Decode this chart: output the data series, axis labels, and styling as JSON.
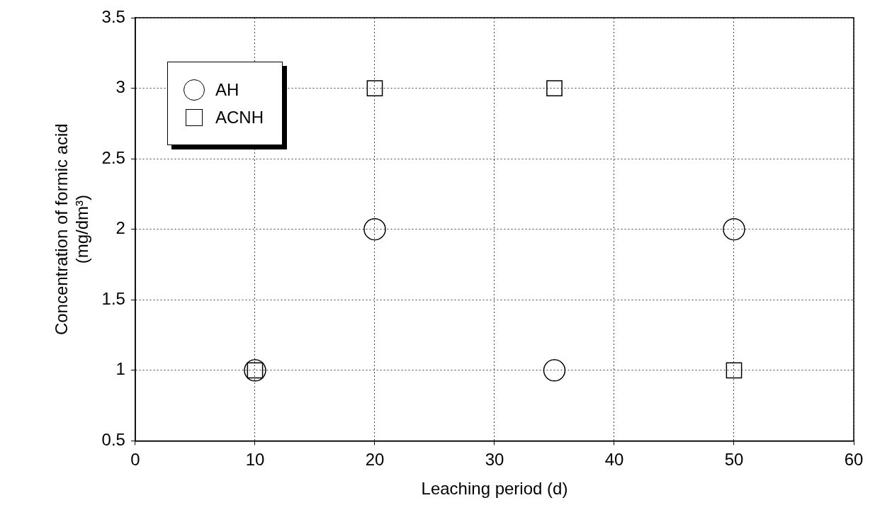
{
  "chart_data": {
    "type": "scatter",
    "xlabel": "Leaching period (d)",
    "ylabel": "Concentration of formic acid (mg/dm³)",
    "x": [
      10,
      20,
      35,
      50
    ],
    "series": [
      {
        "name": "AH",
        "color": "#000000",
        "marker": "circle",
        "values": [
          1,
          2,
          1,
          2
        ]
      },
      {
        "name": "ACNH",
        "color": "#000000",
        "marker": "square",
        "values": [
          1,
          3,
          3,
          1
        ]
      }
    ],
    "xlim": [
      0,
      60
    ],
    "xticks": [
      0,
      10,
      20,
      30,
      40,
      50,
      60
    ],
    "ylim": [
      0.5,
      3.5
    ],
    "yticks": [
      0.5,
      1,
      1.5,
      2,
      2.5,
      3,
      3.5
    ],
    "grid": true,
    "legend": "top left"
  }
}
